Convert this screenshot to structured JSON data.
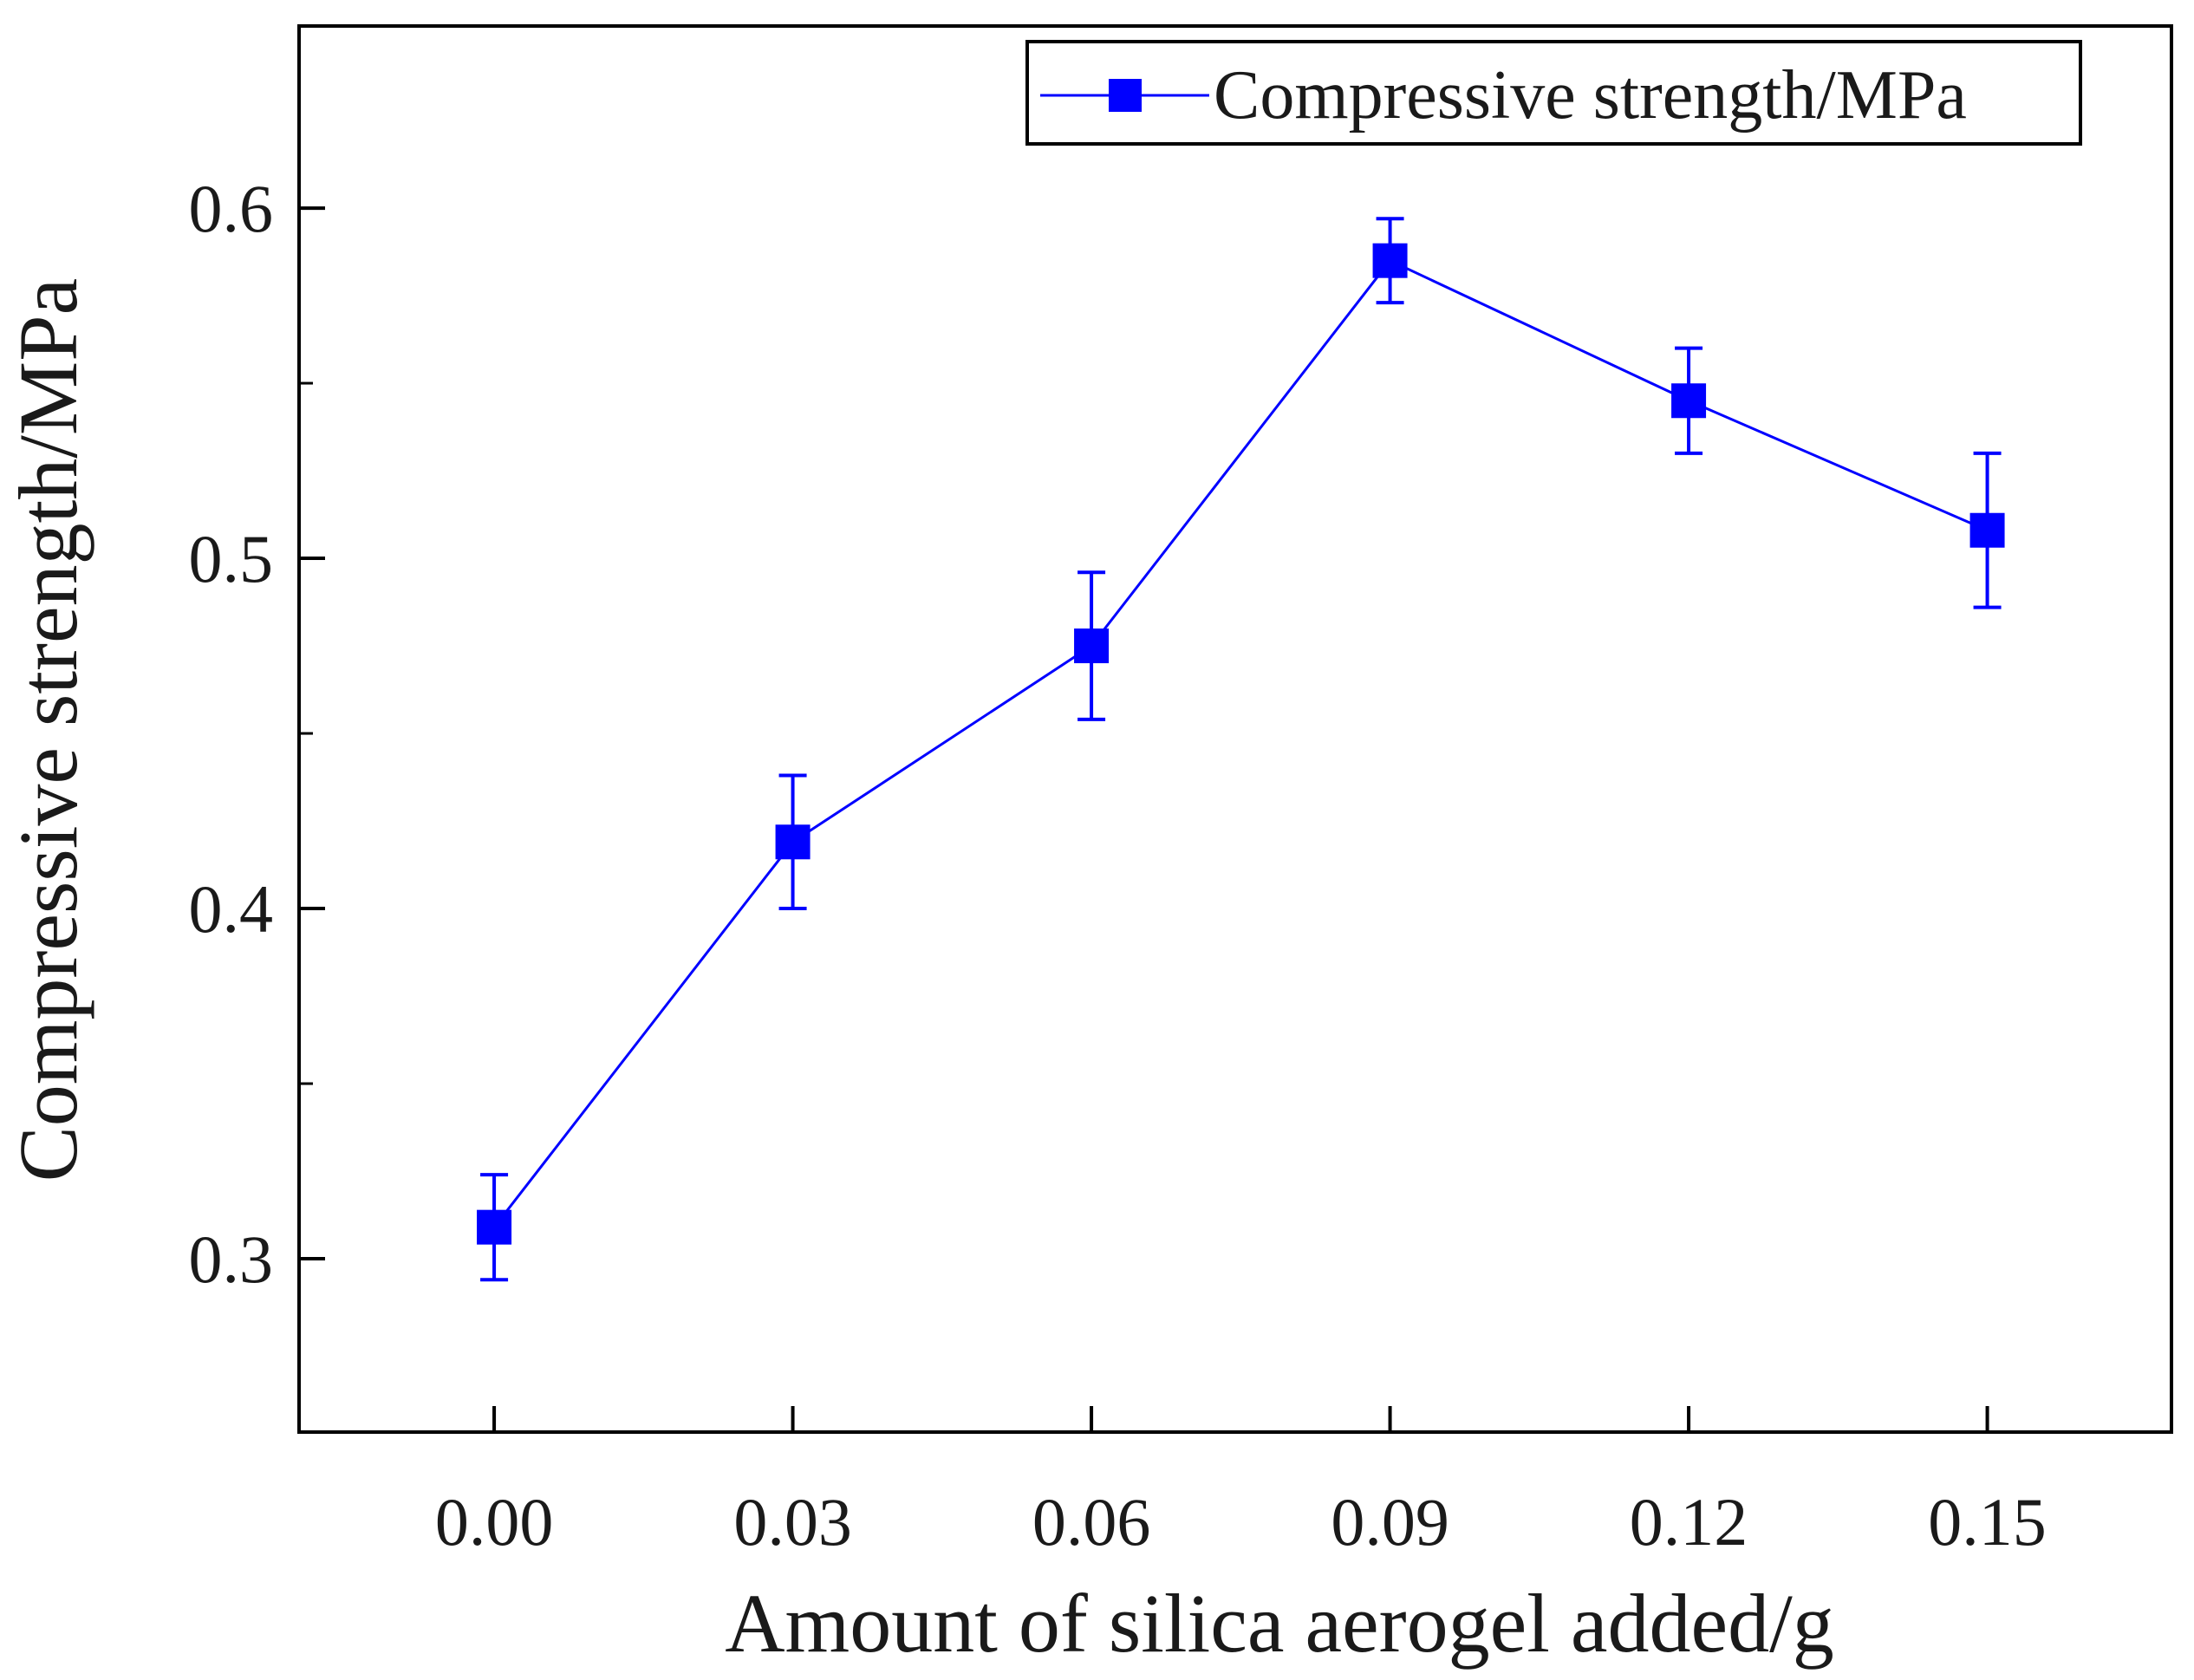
{
  "chart_data": {
    "type": "line",
    "title": "",
    "xlabel": "Amount of silica aerogel added/g",
    "ylabel": "Compressive strength/MPa",
    "x": [
      0.0,
      0.03,
      0.06,
      0.09,
      0.12,
      0.15
    ],
    "x_tick_labels": [
      "0.00",
      "0.03",
      "0.06",
      "0.09",
      "0.12",
      "0.15"
    ],
    "xlim": [
      -0.0196,
      0.1685
    ],
    "ylim": [
      0.2505,
      0.652
    ],
    "y_ticks": [
      0.3,
      0.4,
      0.5,
      0.6
    ],
    "y_tick_labels": [
      "0.3",
      "0.4",
      "0.5",
      "0.6"
    ],
    "y_minor_ticks": [
      0.35,
      0.45,
      0.55
    ],
    "series": [
      {
        "name": "Compressive strength/MPa",
        "color": "#0000ff",
        "marker": "square",
        "values": [
          0.309,
          0.419,
          0.475,
          0.585,
          0.545,
          0.508
        ],
        "error": [
          0.015,
          0.019,
          0.021,
          0.012,
          0.015,
          0.022
        ]
      }
    ],
    "legend": {
      "position": "top-right",
      "label": "Compressive strength/MPa"
    },
    "grid": false
  }
}
